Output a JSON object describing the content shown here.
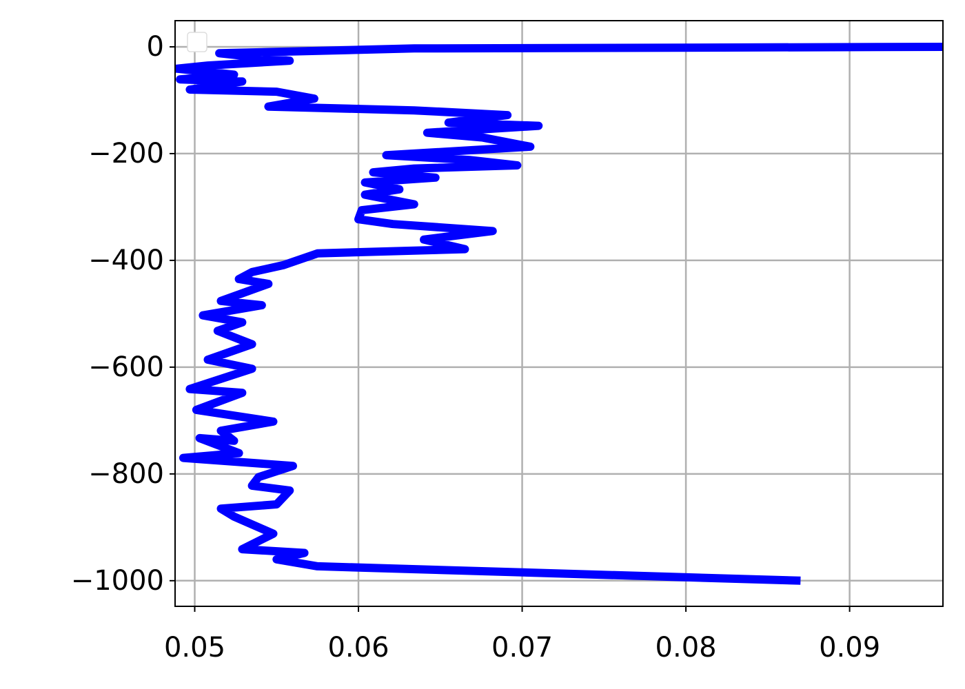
{
  "chart_data": {
    "type": "line",
    "color": "#0000ff",
    "grid": true,
    "xlim": [
      0.0488,
      0.0957
    ],
    "ylim": [
      -1048,
      49
    ],
    "xticks": [
      0.05,
      0.06,
      0.07,
      0.08,
      0.09
    ],
    "yticks": [
      {
        "value": 0,
        "label": "0"
      },
      {
        "value": -200,
        "label": "−200"
      },
      {
        "value": -400,
        "label": "−400"
      },
      {
        "value": -600,
        "label": "−600"
      },
      {
        "value": -800,
        "label": "−800"
      },
      {
        "value": -1000,
        "label": "−1000"
      }
    ],
    "x": [
      0.096,
      0.0634,
      0.0515,
      0.0558,
      0.0508,
      0.0489,
      0.0524,
      0.0491,
      0.0529,
      0.0497,
      0.055,
      0.0573,
      0.0545,
      0.0634,
      0.0691,
      0.0655,
      0.071,
      0.0642,
      0.0676,
      0.0705,
      0.0617,
      0.0668,
      0.0697,
      0.0634,
      0.0609,
      0.0647,
      0.0604,
      0.0625,
      0.0604,
      0.0634,
      0.0602,
      0.06,
      0.0621,
      0.0682,
      0.064,
      0.0665,
      0.0575,
      0.0554,
      0.0535,
      0.0527,
      0.0545,
      0.0516,
      0.0541,
      0.0505,
      0.0529,
      0.0514,
      0.0535,
      0.0508,
      0.0535,
      0.0497,
      0.0529,
      0.0501,
      0.0548,
      0.0516,
      0.0524,
      0.0503,
      0.0527,
      0.0493,
      0.056,
      0.0539,
      0.0535,
      0.0558,
      0.055,
      0.0516,
      0.0524,
      0.0548,
      0.0529,
      0.0567,
      0.055,
      0.0575,
      0.087
    ],
    "values": [
      0,
      -3,
      -12,
      -26,
      -35,
      -41,
      -52,
      -61,
      -65,
      -80,
      -84,
      -97,
      -112,
      -119,
      -128,
      -142,
      -148,
      -161,
      -170,
      -187,
      -203,
      -212,
      -222,
      -228,
      -235,
      -245,
      -254,
      -267,
      -277,
      -295,
      -306,
      -323,
      -332,
      -345,
      -361,
      -379,
      -387,
      -409,
      -422,
      -435,
      -444,
      -476,
      -484,
      -503,
      -516,
      -532,
      -557,
      -586,
      -603,
      -641,
      -648,
      -680,
      -702,
      -719,
      -738,
      -733,
      -761,
      -770,
      -785,
      -806,
      -822,
      -831,
      -857,
      -865,
      -880,
      -912,
      -941,
      -948,
      -960,
      -973,
      -1000
    ]
  }
}
